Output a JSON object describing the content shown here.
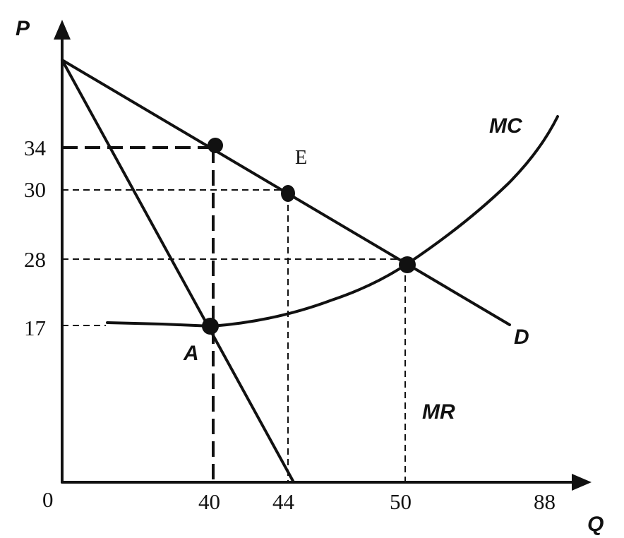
{
  "axes": {
    "y_label": "P",
    "x_label": "Q",
    "origin_label": "0",
    "y_ticks": [
      "34",
      "30",
      "28",
      "17"
    ],
    "x_ticks": [
      "40",
      "44",
      "50",
      "88"
    ]
  },
  "curves": {
    "mc_label": "MC",
    "d_label": "D",
    "mr_label": "MR"
  },
  "points": {
    "e_label": "E",
    "a_label": "A"
  },
  "colors": {
    "ink": "#111111",
    "background": "#ffffff"
  }
}
